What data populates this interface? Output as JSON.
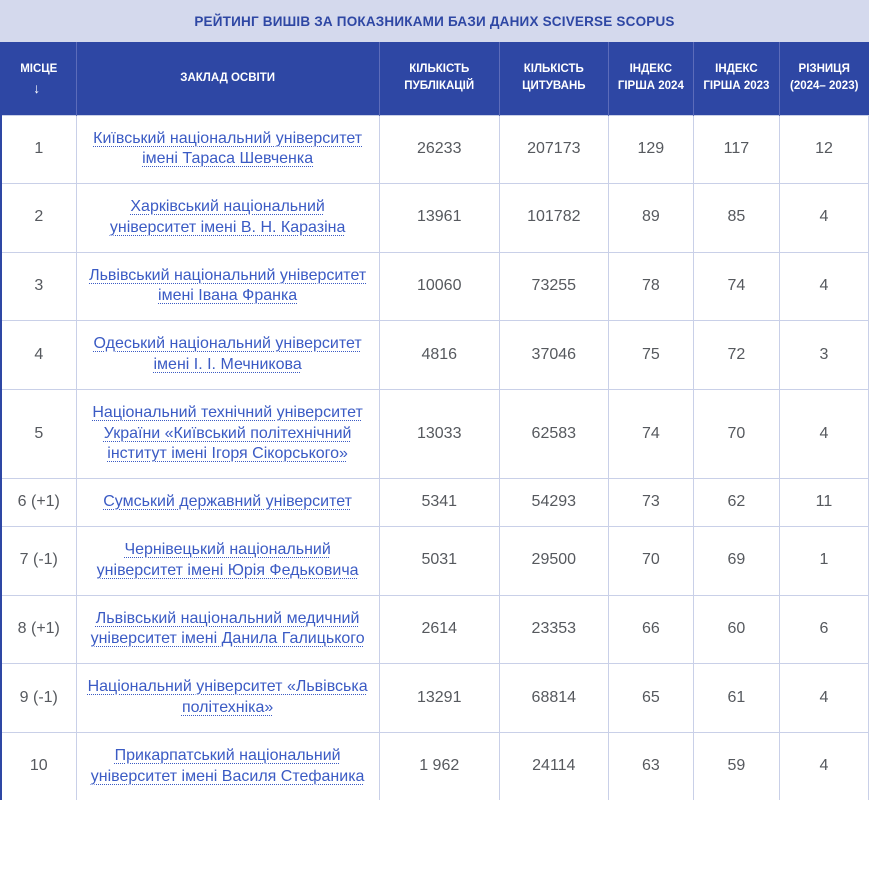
{
  "banner": {
    "title": "РЕЙТИНГ ВИШІВ ЗА ПОКАЗНИКАМИ БАЗИ ДАНИХ SCIVERSE SCOPUS"
  },
  "table": {
    "columns": {
      "place": {
        "label": "МІСЦЕ",
        "sort_icon": "↓"
      },
      "university": {
        "label": "ЗАКЛАД ОСВІТИ"
      },
      "publications": {
        "label": "КІЛЬКІСТЬ ПУБЛІКАЦІЙ"
      },
      "citations": {
        "label": "КІЛЬКІСТЬ ЦИТУВАНЬ"
      },
      "hirsch_2024": {
        "label": "ІНДЕКС ГІРША 2024"
      },
      "hirsch_2023": {
        "label": "ІНДЕКС ГІРША 2023"
      },
      "difference": {
        "label": "РІЗНИЦЯ (2024– 2023)"
      }
    },
    "rows": [
      {
        "place": "1",
        "university": "Київський національний університет імені Тараса Шевченка",
        "publications": "26233",
        "citations": "207173",
        "hirsch_2024": "129",
        "hirsch_2023": "117",
        "difference": "12"
      },
      {
        "place": "2",
        "university": "Харківський національний університет імені В. Н. Каразіна",
        "publications": "13961",
        "citations": "101782",
        "hirsch_2024": "89",
        "hirsch_2023": "85",
        "difference": "4"
      },
      {
        "place": "3",
        "university": "Львівський національний університет імені Івана Франка",
        "publications": "10060",
        "citations": "73255",
        "hirsch_2024": "78",
        "hirsch_2023": "74",
        "difference": "4"
      },
      {
        "place": "4",
        "university": "Одеський національний університет імені І. І. Мечникова",
        "publications": "4816",
        "citations": "37046",
        "hirsch_2024": "75",
        "hirsch_2023": "72",
        "difference": "3"
      },
      {
        "place": "5",
        "university": "Національний технічний університет України «Київський політехнічний інститут імені Ігоря Сікорського»",
        "publications": "13033",
        "citations": "62583",
        "hirsch_2024": "74",
        "hirsch_2023": "70",
        "difference": "4"
      },
      {
        "place": "6 (+1)",
        "university": "Сумський державний університет",
        "publications": "5341",
        "citations": "54293",
        "hirsch_2024": "73",
        "hirsch_2023": "62",
        "difference": "11"
      },
      {
        "place": "7 (-1)",
        "university": "Чернівецький національний університет імені Юрія Федьковича",
        "publications": "5031",
        "citations": "29500",
        "hirsch_2024": "70",
        "hirsch_2023": "69",
        "difference": "1"
      },
      {
        "place": "8 (+1)",
        "university": "Львівський національний медичний університет імені Данила Галицького",
        "publications": "2614",
        "citations": "23353",
        "hirsch_2024": "66",
        "hirsch_2023": "60",
        "difference": "6"
      },
      {
        "place": "9 (-1)",
        "university": "Національний університет «Львівська політехніка»",
        "publications": "13291",
        "citations": "68814",
        "hirsch_2024": "65",
        "hirsch_2023": "61",
        "difference": "4"
      },
      {
        "place": "10",
        "university": "Прикарпатський національний університет імені Василя Стефаника",
        "publications": "1 962",
        "citations": "24114",
        "hirsch_2024": "63",
        "hirsch_2023": "59",
        "difference": "4"
      }
    ]
  },
  "colors": {
    "header_blue": "#2e47a4",
    "banner_bg": "#d4d9ed",
    "link_blue": "#3b5bc4",
    "body_text": "#56595e",
    "cell_border": "#c9d0e8"
  }
}
